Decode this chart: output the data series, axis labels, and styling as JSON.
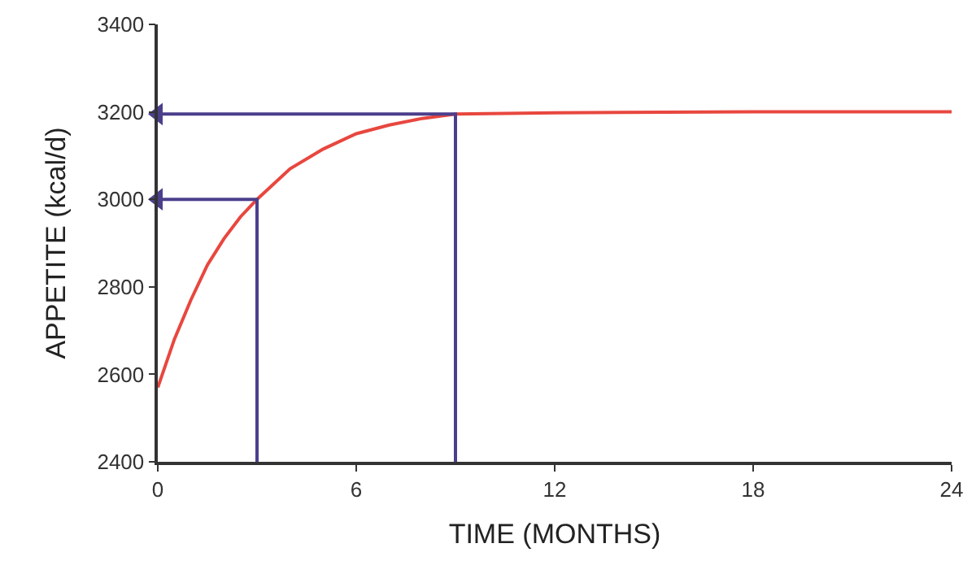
{
  "chart_data": {
    "type": "line",
    "xlabel": "TIME (MONTHS)",
    "ylabel": "APPETITE (kcal/d)",
    "xlim": [
      0,
      24
    ],
    "xticks": [
      0,
      6,
      12,
      18,
      24
    ],
    "ylim": [
      2400,
      3400
    ],
    "yticks": [
      2400,
      2600,
      2800,
      3000,
      3200,
      3400
    ],
    "legend": false,
    "marker": "none",
    "line_style": "solid",
    "series": [
      {
        "color": "#e8473f",
        "x": [
          0,
          0.5,
          1,
          1.5,
          2,
          2.5,
          3,
          4,
          5,
          6,
          7,
          8,
          9,
          12,
          18,
          24
        ],
        "values": [
          2570,
          2680,
          2770,
          2850,
          2910,
          2960,
          3000,
          3070,
          3115,
          3150,
          3170,
          3185,
          3195,
          3198,
          3200,
          3200
        ]
      },
      {
        "color": "#4b3f8c",
        "x": [
          3,
          3,
          0
        ],
        "values": [
          2400,
          3000,
          3000
        ]
      },
      {
        "color": "#4b3f8c",
        "x": [
          9,
          9,
          0
        ],
        "values": [
          2400,
          3195,
          3195
        ]
      }
    ]
  }
}
